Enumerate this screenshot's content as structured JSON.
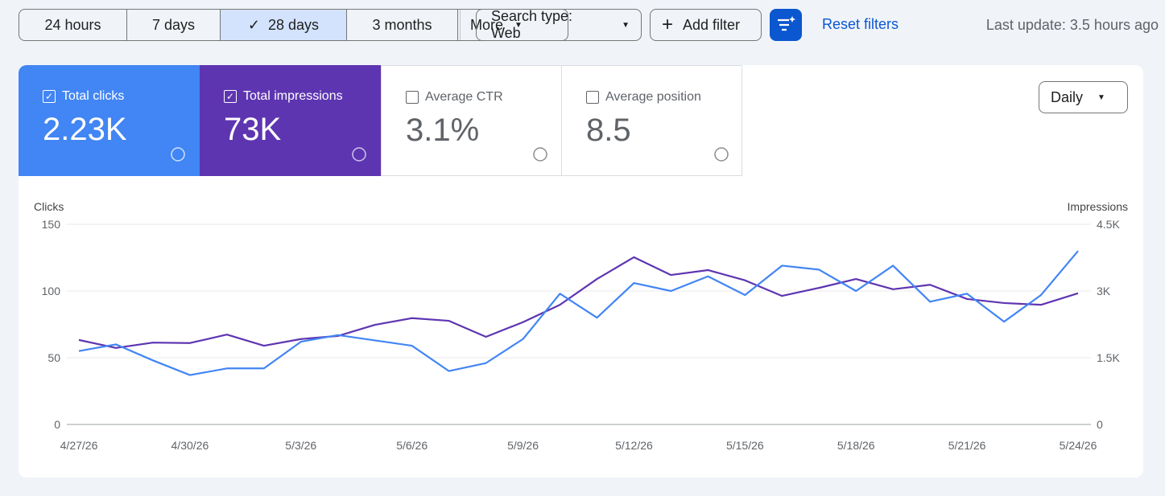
{
  "toolbar": {
    "ranges": [
      "24 hours",
      "7 days",
      "28 days",
      "3 months",
      "More"
    ],
    "search_type": "Search type: Web",
    "add_filter": "Add filter",
    "reset": "Reset filters",
    "last_update": "Last update: 3.5 hours ago"
  },
  "cards": [
    {
      "label": "Total clicks",
      "value": "2.23K",
      "checked": true
    },
    {
      "label": "Total impressions",
      "value": "73K",
      "checked": true
    },
    {
      "label": "Average CTR",
      "value": "3.1%",
      "checked": false
    },
    {
      "label": "Average position",
      "value": "8.5",
      "checked": false
    }
  ],
  "granularity": "Daily",
  "chart_data": {
    "type": "line",
    "y_label": "Clicks",
    "y2_label": "Impressions",
    "categories": [
      "4/27/26",
      null,
      null,
      "4/30/26",
      null,
      null,
      "5/3/26",
      null,
      null,
      "5/6/26",
      null,
      null,
      "5/9/26",
      null,
      null,
      "5/12/26",
      null,
      null,
      "5/15/26",
      null,
      null,
      "5/18/26",
      null,
      null,
      "5/21/26",
      null,
      null,
      "5/24/26"
    ],
    "series": [
      {
        "name": "Total clicks",
        "color": "#4285f4",
        "values": [
          55,
          60,
          48,
          37,
          42,
          42,
          62,
          67,
          63,
          59,
          40,
          46,
          64,
          98,
          80,
          106,
          100,
          111,
          97,
          119,
          116,
          100,
          119,
          92,
          98,
          77,
          97,
          130
        ]
      },
      {
        "name": "Total impressions",
        "color": "#5e35b1",
        "axis": "y2",
        "values": [
          1900,
          1720,
          1840,
          1830,
          2020,
          1770,
          1920,
          1990,
          2240,
          2390,
          2330,
          1970,
          2300,
          2690,
          3270,
          3760,
          3360,
          3470,
          3240,
          2890,
          3070,
          3270,
          3040,
          3140,
          2820,
          2730,
          2690,
          2950
        ]
      }
    ],
    "ylim": [
      0,
      150
    ],
    "yticks": [
      0,
      50,
      100,
      150
    ],
    "y2lim": [
      0,
      4500
    ],
    "y2ticks": [
      0,
      {
        "value": 1500,
        "label": "1.5K"
      },
      {
        "value": 3000,
        "label": "3K"
      },
      {
        "value": 4500,
        "label": "4.5K"
      }
    ],
    "grid": true
  }
}
